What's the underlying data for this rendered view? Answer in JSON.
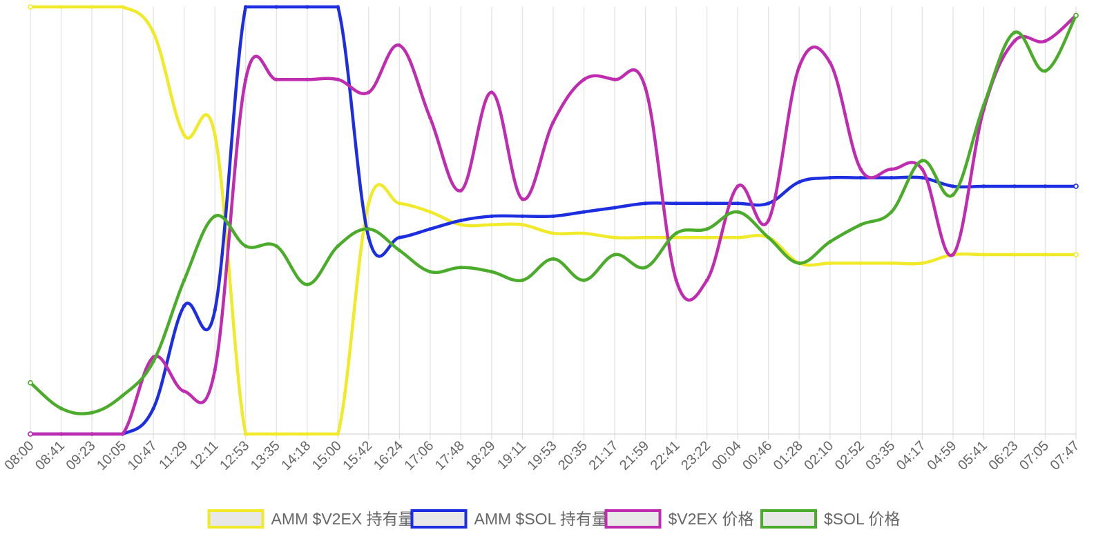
{
  "chart_data": {
    "type": "line",
    "x": [
      "08:00",
      "08:41",
      "09:23",
      "10:05",
      "10:47",
      "11:29",
      "12:11",
      "12:53",
      "13:35",
      "14:18",
      "15:00",
      "15:42",
      "16:24",
      "17:06",
      "17:48",
      "18:29",
      "19:11",
      "19:53",
      "20:35",
      "21:17",
      "21:59",
      "22:41",
      "23:22",
      "00:04",
      "00:46",
      "01:28",
      "02:10",
      "02:52",
      "03:35",
      "04:17",
      "04:59",
      "05:41",
      "06:23",
      "07:05",
      "07:47"
    ],
    "y_range": [
      0,
      1
    ],
    "y_axis_labels_shown": false,
    "grid": "vertical",
    "legend_position": "bottom",
    "series": [
      {
        "name": "AMM $V2EX 持有量",
        "color": "#f0ea2a",
        "values": [
          1.0,
          1.0,
          1.0,
          1.0,
          0.94,
          0.7,
          0.7,
          0.0,
          0.0,
          0.0,
          0.0,
          0.54,
          0.54,
          0.52,
          0.49,
          0.49,
          0.49,
          0.47,
          0.47,
          0.46,
          0.46,
          0.46,
          0.46,
          0.46,
          0.46,
          0.4,
          0.4,
          0.4,
          0.4,
          0.4,
          0.42,
          0.42,
          0.42,
          0.42,
          0.42
        ]
      },
      {
        "name": "AMM $SOL 持有量",
        "color": "#1c2ee0",
        "values": [
          0.0,
          0.0,
          0.0,
          0.0,
          0.06,
          0.3,
          0.29,
          1.0,
          1.0,
          1.0,
          1.0,
          0.46,
          0.46,
          0.48,
          0.5,
          0.51,
          0.51,
          0.51,
          0.52,
          0.53,
          0.54,
          0.54,
          0.54,
          0.54,
          0.54,
          0.59,
          0.6,
          0.6,
          0.6,
          0.6,
          0.58,
          0.58,
          0.58,
          0.58,
          0.58
        ]
      },
      {
        "name": "$V2EX 价格",
        "color": "#c02cb0",
        "values": [
          0.0,
          0.0,
          0.0,
          0.0,
          0.18,
          0.1,
          0.15,
          0.83,
          0.83,
          0.83,
          0.83,
          0.8,
          0.91,
          0.74,
          0.57,
          0.8,
          0.55,
          0.73,
          0.83,
          0.83,
          0.81,
          0.36,
          0.36,
          0.58,
          0.5,
          0.86,
          0.87,
          0.62,
          0.62,
          0.62,
          0.42,
          0.76,
          0.92,
          0.92,
          0.98
        ]
      },
      {
        "name": "$SOL 价格",
        "color": "#4aac2a",
        "values": [
          0.12,
          0.06,
          0.05,
          0.09,
          0.17,
          0.36,
          0.51,
          0.44,
          0.44,
          0.35,
          0.44,
          0.48,
          0.43,
          0.38,
          0.39,
          0.38,
          0.36,
          0.41,
          0.36,
          0.42,
          0.39,
          0.47,
          0.48,
          0.52,
          0.46,
          0.4,
          0.45,
          0.49,
          0.52,
          0.64,
          0.56,
          0.77,
          0.94,
          0.85,
          0.98
        ]
      }
    ]
  }
}
